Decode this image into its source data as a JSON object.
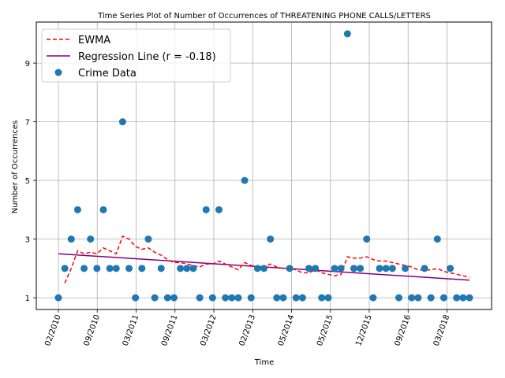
{
  "chart_data": {
    "type": "scatter",
    "title": "Time Series Plot of Number of Occurrences of THREATENING PHONE CALLS/LETTERS",
    "xlabel": "Time",
    "ylabel": "Number of Occurrences",
    "x_ticks": [
      "02/2010",
      "09/2010",
      "03/2011",
      "09/2011",
      "03/2012",
      "02/2013",
      "05/2014",
      "05/2015",
      "12/2015",
      "09/2016",
      "03/2018"
    ],
    "y_ticks": [
      1,
      3,
      5,
      7,
      9
    ],
    "ylim": [
      0.6,
      10.4
    ],
    "grid": true,
    "legend_position": "top-left",
    "legend": [
      "EWMA",
      "Regression Line (r = -0.18)",
      "Crime Data"
    ],
    "colors": {
      "ewma": "#ff0000",
      "regression": "#800080",
      "points": "#1f77b4"
    },
    "series": [
      {
        "name": "Crime Data",
        "type": "scatter",
        "values": [
          1,
          2,
          3,
          4,
          2,
          3,
          2,
          4,
          2,
          2,
          7,
          2,
          1,
          2,
          3,
          1,
          2,
          1,
          1,
          2,
          2,
          2,
          1,
          4,
          1,
          4,
          1,
          1,
          1,
          5,
          1,
          2,
          2,
          3,
          1,
          1,
          2,
          1,
          1,
          2,
          2,
          1,
          1,
          2,
          2,
          10,
          2,
          2,
          3,
          1,
          2,
          2,
          2,
          1,
          2,
          1,
          1,
          2,
          1,
          3,
          1,
          2,
          1,
          1,
          1
        ]
      },
      {
        "name": "EWMA",
        "type": "line",
        "style": "dashed",
        "values": [
          null,
          1.5,
          2.0,
          2.6,
          2.5,
          2.55,
          2.5,
          2.7,
          2.6,
          2.5,
          3.1,
          3.0,
          2.75,
          2.65,
          2.7,
          2.55,
          2.45,
          2.3,
          2.2,
          2.2,
          2.15,
          2.1,
          2.05,
          2.15,
          2.15,
          2.25,
          2.15,
          2.05,
          1.95,
          2.2,
          2.1,
          2.05,
          2.05,
          2.15,
          2.05,
          2.0,
          2.0,
          1.95,
          1.85,
          1.85,
          1.95,
          1.85,
          1.8,
          1.75,
          1.8,
          2.4,
          2.35,
          2.35,
          2.4,
          2.3,
          2.25,
          2.25,
          2.2,
          2.15,
          2.1,
          2.05,
          1.95,
          1.95,
          1.95,
          2.0,
          1.9,
          1.85,
          1.8,
          1.75,
          1.7
        ]
      },
      {
        "name": "Regression Line (r = -0.18)",
        "type": "line",
        "style": "solid",
        "values": [
          2.5,
          1.6
        ]
      }
    ]
  }
}
